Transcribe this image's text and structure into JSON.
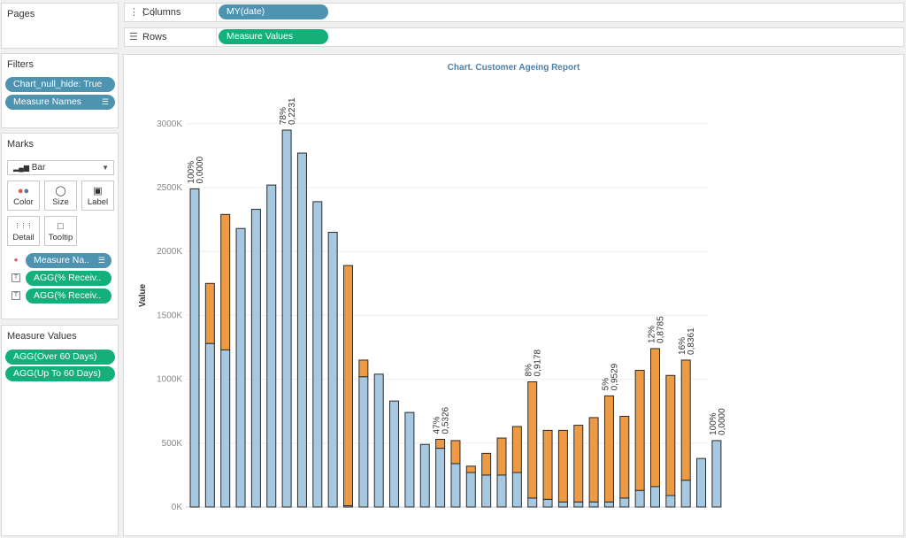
{
  "pages": {
    "title": "Pages"
  },
  "filters": {
    "title": "Filters",
    "items": [
      "Chart_null_hide: True",
      "Measure Names"
    ]
  },
  "marks": {
    "title": "Marks",
    "mark_type": "Bar",
    "buttons": {
      "color": "Color",
      "size": "Size",
      "label": "Label",
      "detail": "Detail",
      "tooltip": "Tooltip"
    },
    "fields": [
      "Measure Na..",
      "AGG(% Receiv..",
      "AGG(% Receiv.."
    ]
  },
  "measure_values": {
    "title": "Measure Values",
    "items": [
      "AGG(Over 60 Days)",
      "AGG(Up To 60 Days)"
    ]
  },
  "columns_shelf": {
    "label": "Columns",
    "pill": "MY(date)"
  },
  "rows_shelf": {
    "label": "Rows",
    "pill": "Measure Values"
  },
  "colors": {
    "up_to_60": "#a6c8e0",
    "over_60": "#ed9a45",
    "blue_pill": "#4e93b0",
    "green_pill": "#14b07a",
    "title": "#4f81a8"
  },
  "chart_data": {
    "type": "bar",
    "stacked": true,
    "title": "Chart. Customer Ageing Report",
    "xlabel": "",
    "ylabel": "Value",
    "ylim": [
      0,
      3000
    ],
    "yticks": [
      "0K",
      "500K",
      "1000K",
      "1500K",
      "2000K",
      "2500K",
      "3000K"
    ],
    "gridlines": true,
    "series": [
      {
        "name": "AGG(Up To 60 Days)",
        "values": [
          2490,
          1280,
          1230,
          2180,
          2330,
          2520,
          2950,
          2770,
          2390,
          2150,
          10,
          1020,
          1040,
          830,
          740,
          490,
          460,
          340,
          270,
          250,
          250,
          270,
          70,
          60,
          40,
          40,
          40,
          40,
          70,
          130,
          160,
          90,
          210,
          380,
          520
        ]
      },
      {
        "name": "AGG(Over 60 Days)",
        "values": [
          0,
          470,
          1060,
          0,
          0,
          0,
          0,
          0,
          0,
          0,
          1880,
          130,
          0,
          0,
          0,
          0,
          70,
          180,
          50,
          170,
          290,
          360,
          910,
          540,
          560,
          600,
          660,
          830,
          640,
          940,
          1080,
          940,
          940,
          0,
          0
        ]
      }
    ],
    "bar_labels": [
      {
        "bar": 0,
        "pct": "100%",
        "val": "0,0000"
      },
      {
        "bar": 6,
        "pct": "78%",
        "val": "0,2231"
      },
      {
        "bar": 16,
        "pct": "47%",
        "val": "0,5326"
      },
      {
        "bar": 22,
        "pct": "8%",
        "val": "0,9178"
      },
      {
        "bar": 27,
        "pct": "5%",
        "val": "0,9529"
      },
      {
        "bar": 30,
        "pct": "12%",
        "val": "0,8785"
      },
      {
        "bar": 32,
        "pct": "16%",
        "val": "0,8361"
      },
      {
        "bar": 34,
        "pct": "100%",
        "val": "0,0000"
      }
    ]
  }
}
